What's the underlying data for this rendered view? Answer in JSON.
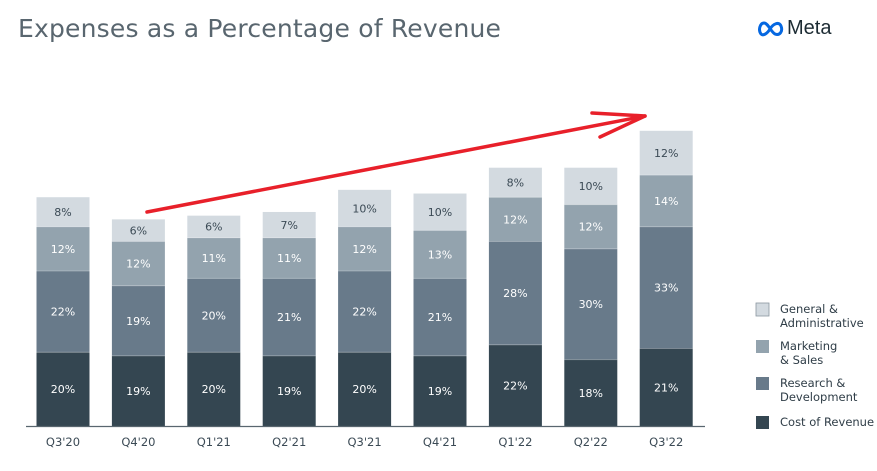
{
  "title": "Expenses as a Percentage of Revenue",
  "logo": {
    "text": "Meta",
    "icon": "meta-infinity-logo",
    "color": "#0668e1"
  },
  "annotation": {
    "type": "hand-drawn-arrow",
    "color": "#e8202a",
    "from": "Q4'20",
    "to": "Q3'22"
  },
  "chart_data": {
    "type": "bar",
    "stacked": true,
    "title": "Expenses as a Percentage of Revenue",
    "categories": [
      "Q3'20",
      "Q4'20",
      "Q1'21",
      "Q2'21",
      "Q3'21",
      "Q4'21",
      "Q1'22",
      "Q2'22",
      "Q3'22"
    ],
    "series": [
      {
        "name": "Cost of Revenue",
        "color": "#344651",
        "values": [
          20,
          19,
          20,
          19,
          20,
          19,
          22,
          18,
          21
        ],
        "labels": [
          "20%",
          "19%",
          "20%",
          "19%",
          "20%",
          "19%",
          "22%",
          "18%",
          "21%"
        ]
      },
      {
        "name": "Research & Development",
        "color": "#687a8a",
        "values": [
          22,
          19,
          20,
          21,
          22,
          21,
          28,
          30,
          33
        ],
        "labels": [
          "22%",
          "19%",
          "20%",
          "21%",
          "22%",
          "21%",
          "28%",
          "30%",
          "33%"
        ]
      },
      {
        "name": "Marketing & Sales",
        "color": "#93a3ae",
        "values": [
          12,
          12,
          11,
          11,
          12,
          13,
          12,
          12,
          14
        ],
        "labels": [
          "12%",
          "12%",
          "11%",
          "11%",
          "12%",
          "13%",
          "12%",
          "12%",
          "14%"
        ]
      },
      {
        "name": "General & Administrative",
        "color": "#d3dae0",
        "values": [
          8,
          6,
          6,
          7,
          10,
          10,
          8,
          10,
          12
        ],
        "labels": [
          "8%",
          "6%",
          "6%",
          "7%",
          "10%",
          "10%",
          "8%",
          "10%",
          "12%"
        ]
      }
    ],
    "legend": {
      "placement": "right",
      "entries": [
        {
          "line1": "General &",
          "line2": "Administrative",
          "color": "#d3dae0"
        },
        {
          "line1": "Marketing",
          "line2": "& Sales",
          "color": "#93a3ae"
        },
        {
          "line1": "Research &",
          "line2": "Development",
          "color": "#687a8a"
        },
        {
          "line1": "Cost of Revenue",
          "line2": "",
          "color": "#344651"
        }
      ]
    },
    "grid": false,
    "ylim": [
      0,
      80
    ]
  }
}
